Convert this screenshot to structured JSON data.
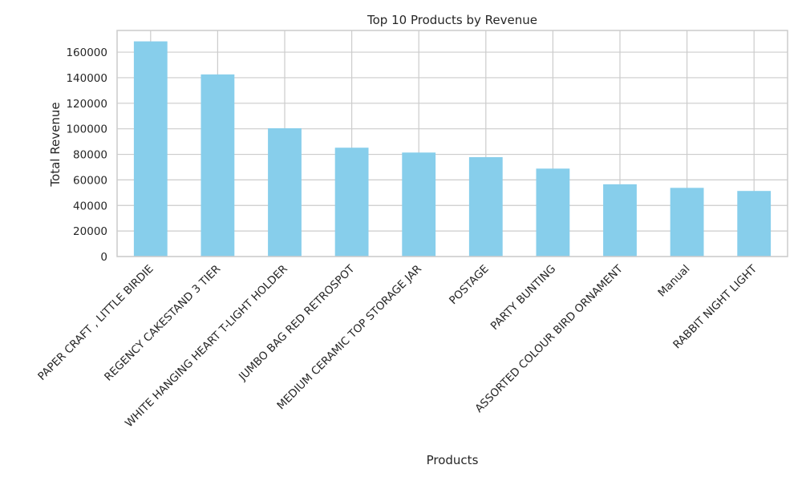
{
  "chart_data": {
    "type": "bar",
    "title": "Top 10 Products by Revenue",
    "xlabel": "Products",
    "ylabel": "Total Revenue",
    "categories": [
      "PAPER CRAFT , LITTLE BIRDIE",
      "REGENCY CAKESTAND 3 TIER",
      "WHITE HANGING HEART T-LIGHT HOLDER",
      "JUMBO BAG RED RETROSPOT",
      "MEDIUM CERAMIC TOP STORAGE JAR",
      "POSTAGE",
      "PARTY BUNTING",
      "ASSORTED COLOUR BIRD ORNAMENT",
      "Manual",
      "RABBIT NIGHT LIGHT"
    ],
    "values": [
      168470,
      142593,
      100448,
      85220,
      81417,
      77804,
      68845,
      56581,
      53780,
      51346
    ],
    "ylim": [
      0,
      177000
    ],
    "yticks": [
      0,
      20000,
      40000,
      60000,
      80000,
      100000,
      120000,
      140000,
      160000
    ],
    "ytick_labels": [
      "0",
      "20000",
      "40000",
      "60000",
      "80000",
      "100000",
      "120000",
      "140000",
      "160000"
    ],
    "grid": true,
    "bar_color": "#87ceeb",
    "grid_color": "#cccccc",
    "background": "#ffffff"
  }
}
